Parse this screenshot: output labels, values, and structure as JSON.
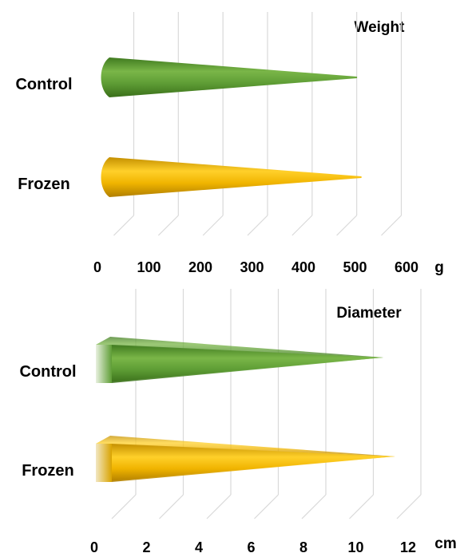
{
  "chart_data": [
    {
      "type": "bar",
      "shape": "cone",
      "title": "Weight",
      "unit": "g",
      "categories": [
        "Control",
        "Frozen"
      ],
      "values": [
        550,
        560
      ],
      "xlim": [
        0,
        600
      ],
      "ticks": [
        "0",
        "100",
        "200",
        "300",
        "400",
        "500",
        "600"
      ],
      "grid": true,
      "colors": [
        "#5b9b35",
        "#f0b400"
      ]
    },
    {
      "type": "bar",
      "shape": "pyramid",
      "title": "Diameter",
      "unit": "cm",
      "categories": [
        "Control",
        "Frozen"
      ],
      "values": [
        11.5,
        12
      ],
      "xlim": [
        0,
        12
      ],
      "ticks": [
        "0",
        "2",
        "4",
        "6",
        "8",
        "10",
        "12"
      ],
      "grid": true,
      "colors": [
        "#5b9b35",
        "#f0b400"
      ]
    }
  ]
}
